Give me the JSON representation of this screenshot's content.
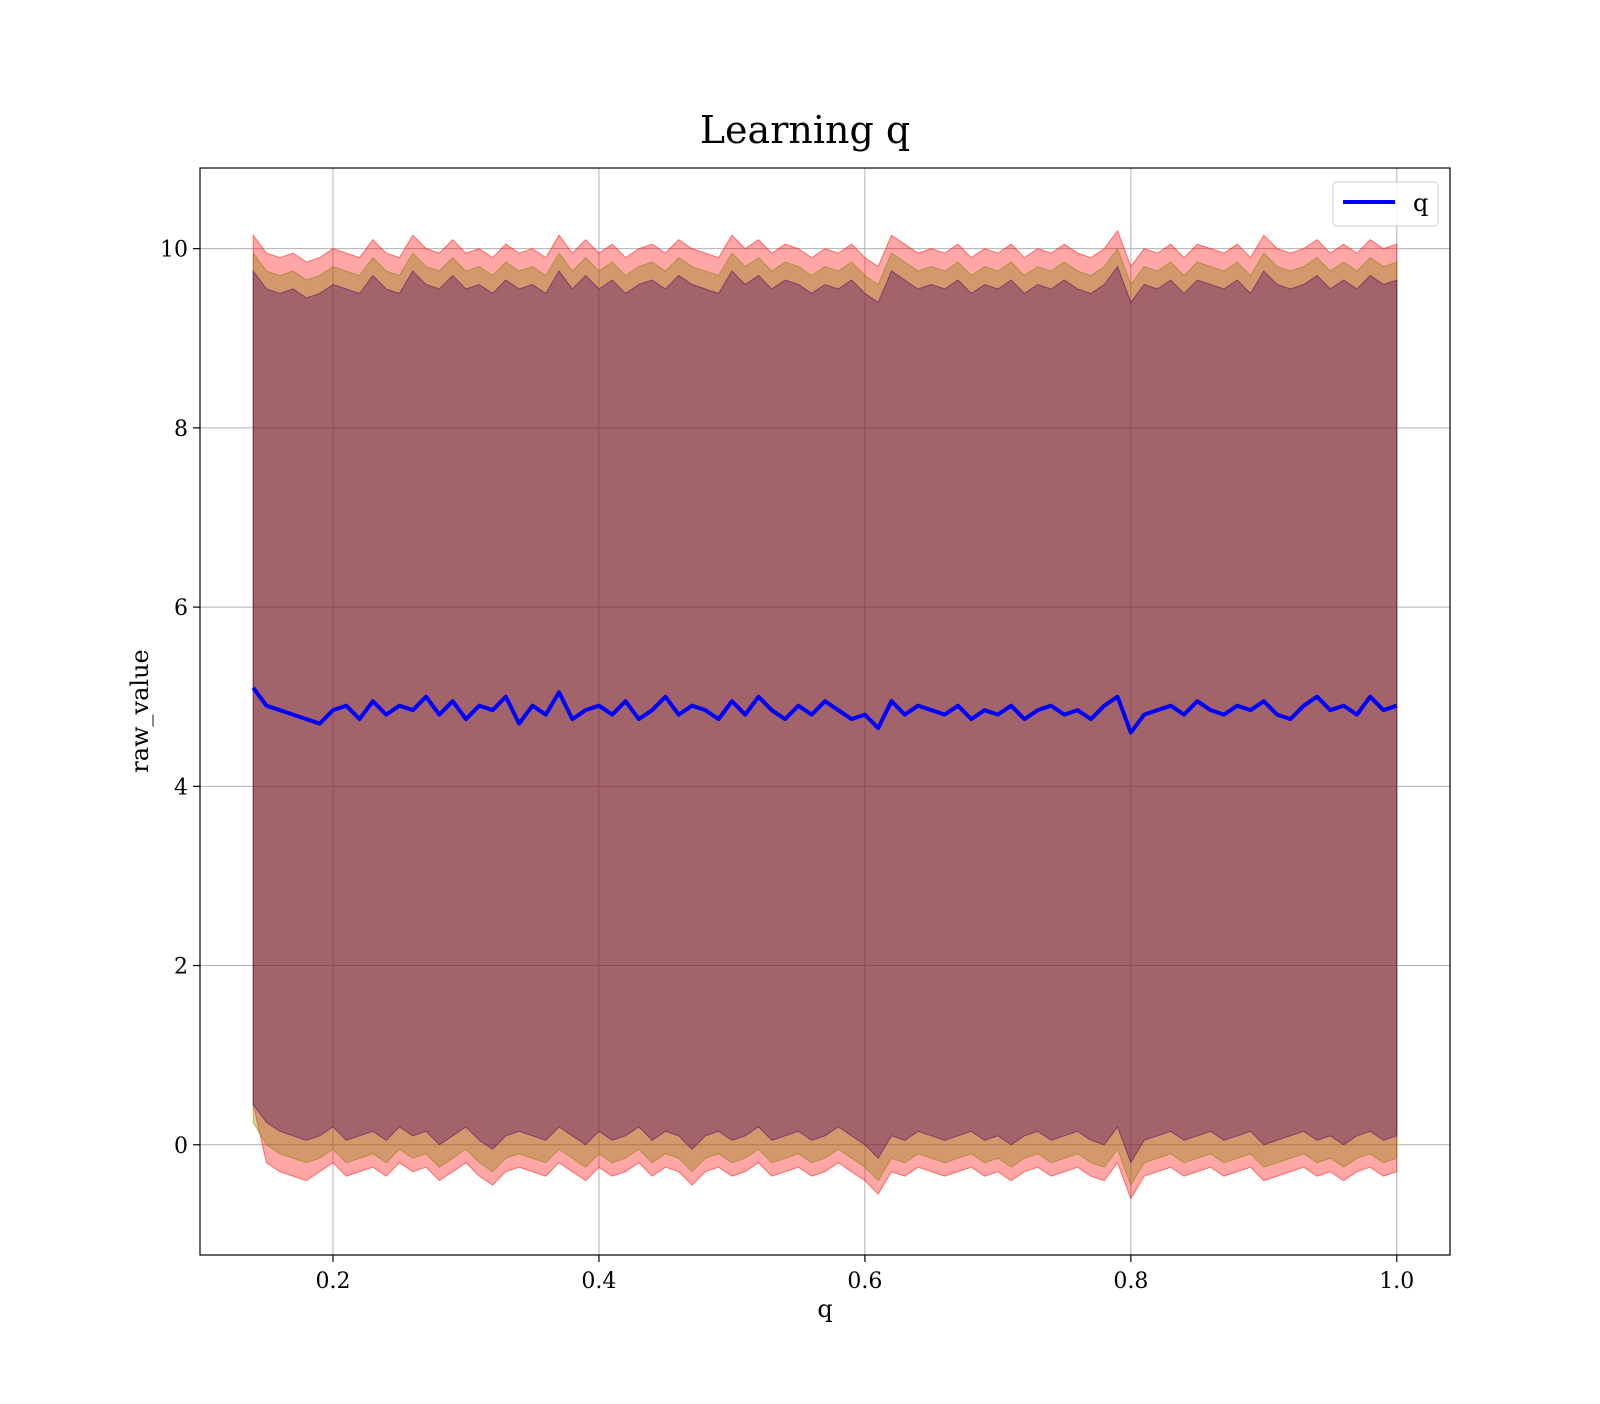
{
  "chart_data": {
    "type": "line",
    "title": "Learning q",
    "xlabel": "q",
    "ylabel": "raw_value",
    "xlim": [
      0.1,
      1.04
    ],
    "ylim": [
      -1.23,
      10.9
    ],
    "xticks": [
      0.2,
      0.4,
      0.6,
      0.8,
      1.0
    ],
    "xtick_labels": [
      "0.2",
      "0.4",
      "0.6",
      "0.8",
      "1.0"
    ],
    "yticks": [
      0,
      2,
      4,
      6,
      8,
      10
    ],
    "ytick_labels": [
      "0",
      "2",
      "4",
      "6",
      "8",
      "10"
    ],
    "grid": true,
    "legend": {
      "position": "top-right",
      "entries": [
        "q"
      ]
    },
    "series": [
      {
        "name": "q",
        "color": "#0000ff",
        "x": [
          0.14,
          0.15,
          0.16,
          0.17,
          0.18,
          0.19,
          0.2,
          0.21,
          0.22,
          0.23,
          0.24,
          0.25,
          0.26,
          0.27,
          0.28,
          0.29,
          0.3,
          0.31,
          0.32,
          0.33,
          0.34,
          0.35,
          0.36,
          0.37,
          0.38,
          0.39,
          0.4,
          0.41,
          0.42,
          0.43,
          0.44,
          0.45,
          0.46,
          0.47,
          0.48,
          0.49,
          0.5,
          0.51,
          0.52,
          0.53,
          0.54,
          0.55,
          0.56,
          0.57,
          0.58,
          0.59,
          0.6,
          0.61,
          0.62,
          0.63,
          0.64,
          0.65,
          0.66,
          0.67,
          0.68,
          0.69,
          0.7,
          0.71,
          0.72,
          0.73,
          0.74,
          0.75,
          0.76,
          0.77,
          0.78,
          0.79,
          0.8,
          0.81,
          0.82,
          0.83,
          0.84,
          0.85,
          0.86,
          0.87,
          0.88,
          0.89,
          0.9,
          0.91,
          0.92,
          0.93,
          0.94,
          0.95,
          0.96,
          0.97,
          0.98,
          0.99,
          1.0
        ],
        "values": [
          5.1,
          4.9,
          4.85,
          4.8,
          4.75,
          4.7,
          4.85,
          4.9,
          4.75,
          4.95,
          4.8,
          4.9,
          4.85,
          5.0,
          4.8,
          4.95,
          4.75,
          4.9,
          4.85,
          5.0,
          4.7,
          4.9,
          4.8,
          5.05,
          4.75,
          4.85,
          4.9,
          4.8,
          4.95,
          4.75,
          4.85,
          5.0,
          4.8,
          4.9,
          4.85,
          4.75,
          4.95,
          4.8,
          5.0,
          4.85,
          4.75,
          4.9,
          4.8,
          4.95,
          4.85,
          4.75,
          4.8,
          4.65,
          4.95,
          4.8,
          4.9,
          4.85,
          4.8,
          4.9,
          4.75,
          4.85,
          4.8,
          4.9,
          4.75,
          4.85,
          4.9,
          4.8,
          4.85,
          4.75,
          4.9,
          5.0,
          4.6,
          4.8,
          4.85,
          4.9,
          4.8,
          4.95,
          4.85,
          4.8,
          4.9,
          4.85,
          4.95,
          4.8,
          4.75,
          4.9,
          5.0,
          4.85,
          4.9,
          4.8,
          5.0,
          4.85,
          4.9
        ]
      }
    ],
    "bands": [
      {
        "color": "#ff0000",
        "opacity": 0.35,
        "lower": [
          0.45,
          -0.2,
          -0.3,
          -0.35,
          -0.4,
          -0.3,
          -0.2,
          -0.35,
          -0.3,
          -0.25,
          -0.35,
          -0.2,
          -0.3,
          -0.25,
          -0.4,
          -0.3,
          -0.2,
          -0.35,
          -0.45,
          -0.3,
          -0.25,
          -0.3,
          -0.35,
          -0.2,
          -0.3,
          -0.4,
          -0.25,
          -0.35,
          -0.3,
          -0.2,
          -0.35,
          -0.25,
          -0.3,
          -0.45,
          -0.3,
          -0.25,
          -0.35,
          -0.3,
          -0.2,
          -0.35,
          -0.3,
          -0.25,
          -0.35,
          -0.3,
          -0.2,
          -0.3,
          -0.4,
          -0.55,
          -0.3,
          -0.35,
          -0.25,
          -0.3,
          -0.35,
          -0.3,
          -0.25,
          -0.35,
          -0.3,
          -0.4,
          -0.3,
          -0.25,
          -0.35,
          -0.3,
          -0.25,
          -0.35,
          -0.4,
          -0.2,
          -0.6,
          -0.35,
          -0.3,
          -0.25,
          -0.35,
          -0.3,
          -0.25,
          -0.35,
          -0.3,
          -0.25,
          -0.4,
          -0.35,
          -0.3,
          -0.25,
          -0.35,
          -0.3,
          -0.4,
          -0.3,
          -0.25,
          -0.35,
          -0.3
        ],
        "upper": [
          10.15,
          9.95,
          9.9,
          9.95,
          9.85,
          9.9,
          10.0,
          9.95,
          9.9,
          10.1,
          9.95,
          9.9,
          10.15,
          10.0,
          9.95,
          10.1,
          9.95,
          10.0,
          9.9,
          10.05,
          9.95,
          10.0,
          9.9,
          10.15,
          9.95,
          10.1,
          9.95,
          10.05,
          9.9,
          10.0,
          10.05,
          9.95,
          10.1,
          10.0,
          9.95,
          9.9,
          10.15,
          10.0,
          10.1,
          9.95,
          10.05,
          10.0,
          9.9,
          10.0,
          9.95,
          10.05,
          9.9,
          9.8,
          10.15,
          10.05,
          9.95,
          10.0,
          9.95,
          10.05,
          9.9,
          10.0,
          9.95,
          10.05,
          9.9,
          10.0,
          9.95,
          10.05,
          9.95,
          9.9,
          10.0,
          10.2,
          9.8,
          10.0,
          9.95,
          10.05,
          9.9,
          10.05,
          10.0,
          9.95,
          10.05,
          9.9,
          10.15,
          10.0,
          9.95,
          10.0,
          10.1,
          9.95,
          10.05,
          9.95,
          10.1,
          10.0,
          10.05
        ]
      },
      {
        "color": "#808000",
        "opacity": 0.35,
        "lower": [
          0.25,
          0.0,
          -0.1,
          -0.15,
          -0.2,
          -0.15,
          -0.05,
          -0.2,
          -0.15,
          -0.1,
          -0.2,
          -0.05,
          -0.15,
          -0.1,
          -0.25,
          -0.15,
          -0.05,
          -0.2,
          -0.3,
          -0.15,
          -0.1,
          -0.15,
          -0.2,
          -0.05,
          -0.15,
          -0.25,
          -0.1,
          -0.2,
          -0.15,
          -0.05,
          -0.2,
          -0.1,
          -0.15,
          -0.3,
          -0.15,
          -0.1,
          -0.2,
          -0.15,
          -0.05,
          -0.2,
          -0.15,
          -0.1,
          -0.2,
          -0.15,
          -0.05,
          -0.15,
          -0.25,
          -0.4,
          -0.15,
          -0.2,
          -0.1,
          -0.15,
          -0.2,
          -0.15,
          -0.1,
          -0.2,
          -0.15,
          -0.25,
          -0.15,
          -0.1,
          -0.2,
          -0.15,
          -0.1,
          -0.2,
          -0.25,
          -0.05,
          -0.45,
          -0.2,
          -0.15,
          -0.1,
          -0.2,
          -0.15,
          -0.1,
          -0.2,
          -0.15,
          -0.1,
          -0.25,
          -0.2,
          -0.15,
          -0.1,
          -0.2,
          -0.15,
          -0.25,
          -0.15,
          -0.1,
          -0.2,
          -0.15
        ],
        "upper": [
          9.95,
          9.75,
          9.7,
          9.75,
          9.65,
          9.7,
          9.8,
          9.75,
          9.7,
          9.9,
          9.75,
          9.7,
          9.95,
          9.8,
          9.75,
          9.9,
          9.75,
          9.8,
          9.7,
          9.85,
          9.75,
          9.8,
          9.7,
          9.95,
          9.75,
          9.9,
          9.75,
          9.85,
          9.7,
          9.8,
          9.85,
          9.75,
          9.9,
          9.8,
          9.75,
          9.7,
          9.95,
          9.8,
          9.9,
          9.75,
          9.85,
          9.8,
          9.7,
          9.8,
          9.75,
          9.85,
          9.7,
          9.6,
          9.95,
          9.85,
          9.75,
          9.8,
          9.75,
          9.85,
          9.7,
          9.8,
          9.75,
          9.85,
          9.7,
          9.8,
          9.75,
          9.85,
          9.75,
          9.7,
          9.8,
          10.0,
          9.6,
          9.8,
          9.75,
          9.85,
          9.7,
          9.85,
          9.8,
          9.75,
          9.85,
          9.7,
          9.95,
          9.8,
          9.75,
          9.8,
          9.9,
          9.75,
          9.85,
          9.75,
          9.9,
          9.8,
          9.85
        ]
      },
      {
        "color": "#4b0066",
        "opacity": 0.35,
        "lower": [
          0.45,
          0.25,
          0.15,
          0.1,
          0.05,
          0.1,
          0.2,
          0.05,
          0.1,
          0.15,
          0.05,
          0.2,
          0.1,
          0.15,
          0.0,
          0.1,
          0.2,
          0.05,
          -0.05,
          0.1,
          0.15,
          0.1,
          0.05,
          0.2,
          0.1,
          0.0,
          0.15,
          0.05,
          0.1,
          0.2,
          0.05,
          0.15,
          0.1,
          -0.05,
          0.1,
          0.15,
          0.05,
          0.1,
          0.2,
          0.05,
          0.1,
          0.15,
          0.05,
          0.1,
          0.2,
          0.1,
          0.0,
          -0.15,
          0.1,
          0.05,
          0.15,
          0.1,
          0.05,
          0.1,
          0.15,
          0.05,
          0.1,
          0.0,
          0.1,
          0.15,
          0.05,
          0.1,
          0.15,
          0.05,
          0.0,
          0.2,
          -0.2,
          0.05,
          0.1,
          0.15,
          0.05,
          0.1,
          0.15,
          0.05,
          0.1,
          0.15,
          0.0,
          0.05,
          0.1,
          0.15,
          0.05,
          0.1,
          0.0,
          0.1,
          0.15,
          0.05,
          0.1
        ],
        "upper": [
          9.75,
          9.55,
          9.5,
          9.55,
          9.45,
          9.5,
          9.6,
          9.55,
          9.5,
          9.7,
          9.55,
          9.5,
          9.75,
          9.6,
          9.55,
          9.7,
          9.55,
          9.6,
          9.5,
          9.65,
          9.55,
          9.6,
          9.5,
          9.75,
          9.55,
          9.7,
          9.55,
          9.65,
          9.5,
          9.6,
          9.65,
          9.55,
          9.7,
          9.6,
          9.55,
          9.5,
          9.75,
          9.6,
          9.7,
          9.55,
          9.65,
          9.6,
          9.5,
          9.6,
          9.55,
          9.65,
          9.5,
          9.4,
          9.75,
          9.65,
          9.55,
          9.6,
          9.55,
          9.65,
          9.5,
          9.6,
          9.55,
          9.65,
          9.5,
          9.6,
          9.55,
          9.65,
          9.55,
          9.5,
          9.6,
          9.8,
          9.4,
          9.6,
          9.55,
          9.65,
          9.5,
          9.65,
          9.6,
          9.55,
          9.65,
          9.5,
          9.75,
          9.6,
          9.55,
          9.6,
          9.7,
          9.55,
          9.65,
          9.55,
          9.7,
          9.6,
          9.65
        ]
      }
    ]
  }
}
